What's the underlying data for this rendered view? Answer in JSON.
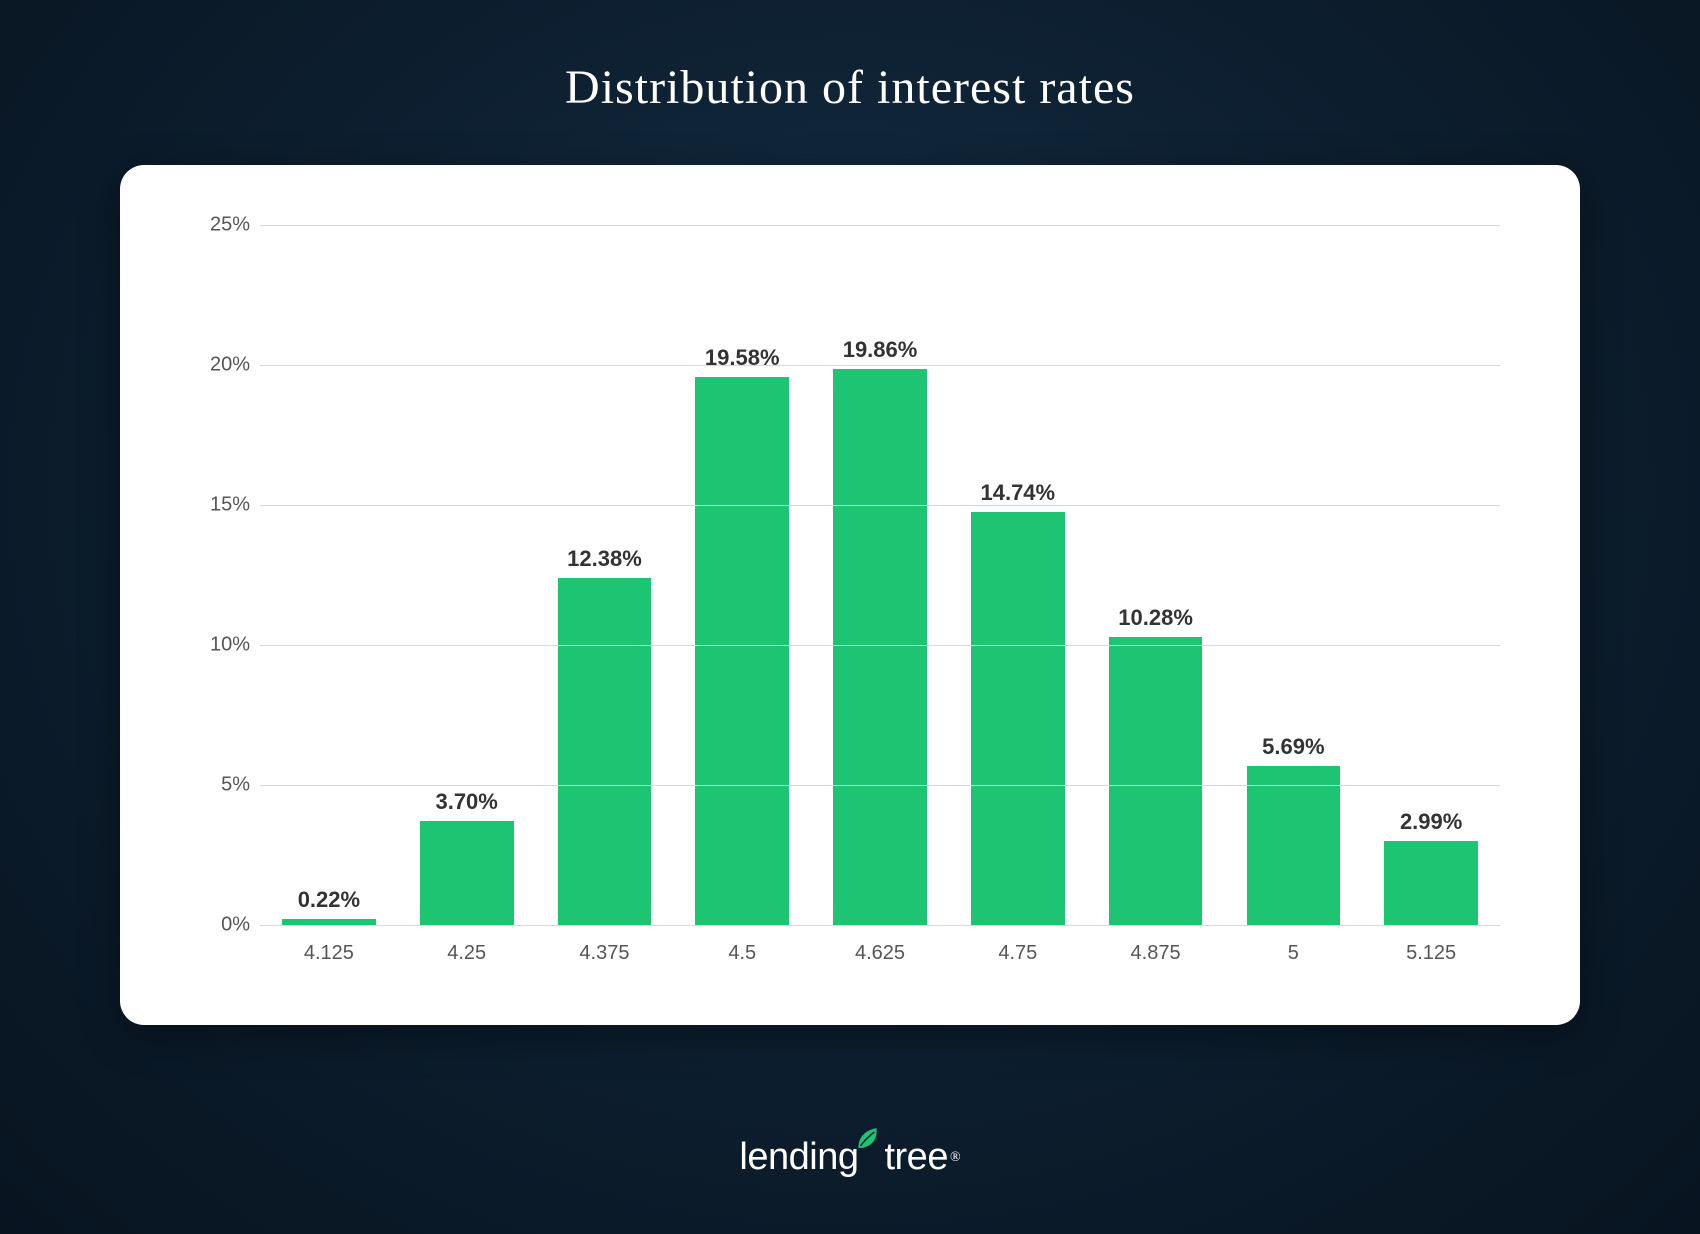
{
  "title": "Distribution of interest rates",
  "chart": {
    "type": "bar",
    "categories": [
      "4.125",
      "4.25",
      "4.375",
      "4.5",
      "4.625",
      "4.75",
      "4.875",
      "5",
      "5.125"
    ],
    "values": [
      0.22,
      3.7,
      12.38,
      19.58,
      19.86,
      14.74,
      10.28,
      5.69,
      2.99
    ],
    "value_labels": [
      "0.22%",
      "3.70%",
      "12.38%",
      "19.58%",
      "19.86%",
      "14.74%",
      "10.28%",
      "5.69%",
      "2.99%"
    ],
    "bar_color": "#1dc472",
    "ylim": [
      0,
      25
    ],
    "ytick_step": 5,
    "y_tick_labels": [
      "0%",
      "5%",
      "10%",
      "15%",
      "20%",
      "25%"
    ],
    "grid_color": "#d8d8d8",
    "background_color": "#ffffff",
    "axis_label_color": "#555555",
    "value_label_color": "#333333",
    "value_label_fontsize": 22,
    "axis_label_fontsize": 20,
    "bar_width": 0.68
  },
  "page": {
    "background_gradient": [
      "#16324a",
      "#0d1f30",
      "#081420"
    ],
    "title_color": "#ffffff",
    "title_fontsize": 48,
    "card_radius": 24
  },
  "logo": {
    "text_before": "lending",
    "text_after": "tree",
    "leaf_color": "#1dc472",
    "text_color": "#ffffff",
    "registered": "®"
  }
}
